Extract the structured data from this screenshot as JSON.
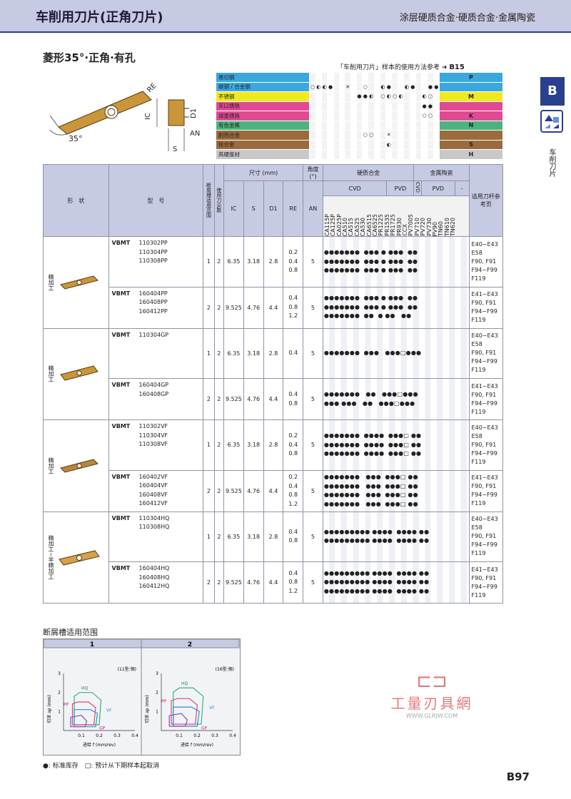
{
  "header": {
    "title": "车削用刀片(正角刀片)",
    "subtitle": "涂层硬质合金·硬质合金·金属陶瓷"
  },
  "section_title": "菱形35°·正角·有孔",
  "reference": {
    "text": "「车削用刀片」样本的使用方法参考",
    "page": "B15"
  },
  "side": {
    "tab": "B",
    "label": "车削刀片"
  },
  "diagram": {
    "label_re": "RE",
    "label_ic": "IC",
    "label_d1": "D1",
    "label_an": "AN",
    "label_s": "S",
    "label_angle": "35°"
  },
  "materials": [
    {
      "name": "易切钢",
      "color": "#3aa8dd",
      "code": "P",
      "marks": ""
    },
    {
      "name": "碳钢 / 合金钢",
      "color": "#3aa8dd",
      "code": "",
      "marks": "○◐◐●  ✕  ○  ◐●  ◐●  ●●"
    },
    {
      "name": "不锈钢",
      "color": "#f2e81c",
      "code": "M",
      "marks": "        ●●◐ ○◐○◐   ◐○"
    },
    {
      "name": "灰口铸铁",
      "color": "#e04a93",
      "code": "",
      "marks": "                   ●●"
    },
    {
      "name": "球墨铸铁",
      "color": "#e04a93",
      "code": "K",
      "marks": "                   ○○"
    },
    {
      "name": "有色金属",
      "color": "#4db37e",
      "code": "N",
      "marks": ""
    },
    {
      "name": "耐热合金",
      "color": "#9a6b3c",
      "code": "",
      "marks": "         ○○  ✕"
    },
    {
      "name": "钛合金",
      "color": "#9a6b3c",
      "code": "S",
      "marks": "             ◐"
    },
    {
      "name": "高硬度材",
      "color": "#c8c8c8",
      "code": "H",
      "marks": ""
    }
  ],
  "table_head": {
    "shape": "形　状",
    "model": "型　号",
    "breaker": "断屑槽适用范围",
    "edges": "使用刀尖数",
    "dims": "尺寸 (mm)",
    "angle": "角度 (°)",
    "carbide": "硬质合金",
    "cermet": "金属陶瓷",
    "cvd": "CVD",
    "pvd": "PVD",
    "cvd2": "CVD",
    "pvd2": "PVD",
    "dash": "-",
    "holder": "适用刀杆参考页",
    "ic": "IC",
    "s": "S",
    "d1": "D1",
    "re": "RE",
    "an": "AN"
  },
  "grades": [
    "CA115P",
    "CA125P",
    "CA025P",
    "CA510",
    "CA515",
    "CA525",
    "CA530",
    "CA6515",
    "CA6525",
    "PR1225",
    "PR1535",
    "PR1725",
    "PR930",
    "CCX",
    "PV7005",
    "PV710",
    "PV720",
    "PV730",
    "PV90",
    "TN60",
    "TN610",
    "TN620"
  ],
  "groups": [
    {
      "category": "精加工",
      "rows": [
        {
          "model": "VBMT",
          "codes": [
            "110302PP",
            "110304PP",
            "110308PP"
          ],
          "breaker": "1",
          "edges": "2",
          "ic": "6.35",
          "s": "3.18",
          "d1": "2.8",
          "re": [
            "0.2",
            "0.4",
            "0.8"
          ],
          "an": "5",
          "dots": [
            "●●●●●●●  ●●● ● ●●●  ●●",
            "●●●●●●●  ●●● ● ●●●  ●●",
            "●●●●●●●  ●●● ● ●●●  ●●"
          ],
          "holder": [
            "E40~E43",
            "E58",
            "F90, F91",
            "F94~F99",
            "F119"
          ]
        },
        {
          "model": "VBMT",
          "codes": [
            "160404PP",
            "160408PP",
            "160412PP"
          ],
          "breaker": "2",
          "edges": "2",
          "ic": "9.525",
          "s": "4.76",
          "d1": "4.4",
          "re": [
            "0.4",
            "0.8",
            "1.2"
          ],
          "an": "5",
          "dots": [
            "●●●●●●●  ●●● ● ●●●  ●●",
            "●●●●●●●  ●●● ● ●●●  ●●",
            "●●●●●●●  ●●  ● ●●   ●●"
          ],
          "holder": [
            "E41~E43",
            "F90, F91",
            "F94~F99",
            "F119"
          ]
        }
      ]
    },
    {
      "category": "精加工",
      "rows": [
        {
          "model": "VBMT",
          "codes": [
            "110304GP"
          ],
          "breaker": "1",
          "edges": "2",
          "ic": "6.35",
          "s": "3.18",
          "d1": "2.8",
          "re": [
            "0.4"
          ],
          "an": "5",
          "dots": [
            "●●●●●●●  ●●●   ●●●□●●●"
          ],
          "holder": [
            "E40~E43",
            "E58",
            "F90, F91",
            "F94~F99",
            "F119"
          ]
        },
        {
          "model": "VBMT",
          "codes": [
            "160404GP",
            "160408GP"
          ],
          "breaker": "2",
          "edges": "2",
          "ic": "9.525",
          "s": "4.76",
          "d1": "4.4",
          "re": [
            "0.4",
            "0.8"
          ],
          "an": "5",
          "dots": [
            "●●●●●●●   ●●   ●●●□●●●",
            "●●● ●●●   ●●   ●●●□●●●"
          ],
          "holder": [
            "E41~E43",
            "F90, F91",
            "F94~F99",
            "F119"
          ]
        }
      ]
    },
    {
      "category": "精加工",
      "rows": [
        {
          "model": "VBMT",
          "codes": [
            "110302VF",
            "110304VF",
            "110308VF"
          ],
          "breaker": "1",
          "edges": "2",
          "ic": "6.35",
          "s": "3.18",
          "d1": "2.8",
          "re": [
            "0.2",
            "0.4",
            "0.8"
          ],
          "an": "5",
          "dots": [
            "●●●●●●●  ●●●●  ●●●□ ●●",
            "●●●●●●●  ●●●●  ●●●□ ●●",
            "●●●●●●●  ●●●●  ●●●□ ●●"
          ],
          "holder": [
            "E40~E43",
            "E58",
            "F90, F91",
            "F94~F99",
            "F119"
          ]
        },
        {
          "model": "VBMT",
          "codes": [
            "160402VF",
            "160404VF",
            "160408VF",
            "160412VF"
          ],
          "breaker": "2",
          "edges": "2",
          "ic": "9.525",
          "s": "4.76",
          "d1": "4.4",
          "re": [
            "0.2",
            "0.4",
            "0.8",
            "1.2"
          ],
          "an": "5",
          "dots": [
            "●●●●●●●   ●●●  ●●●□ ●●",
            "●●●●●●●   ●●●  ●●●□ ●●",
            "●●●●●●●   ●●●  ●●●□ ●●",
            "●●●●●●●   ●●●  ●●●□ ●●"
          ],
          "holder": [
            "E41~E43",
            "F90, F91",
            "F94~F99",
            "F119"
          ]
        }
      ]
    },
    {
      "category": "精加工~半精加工",
      "rows": [
        {
          "model": "VBMT",
          "codes": [
            "110304HQ",
            "110308HQ"
          ],
          "breaker": "1",
          "edges": "2",
          "ic": "6.35",
          "s": "3.18",
          "d1": "2.8",
          "re": [
            "0.4",
            "0.8"
          ],
          "an": "5",
          "dots": [
            "●●●●●●●●● ●●●●  ●●●● ●●",
            "●●●●●●●●● ●●●●  ●●●● ●●"
          ],
          "holder": [
            "E40~E43",
            "E58",
            "F90, F91",
            "F94~F99",
            "F119"
          ]
        },
        {
          "model": "VBMT",
          "codes": [
            "160404HQ",
            "160408HQ",
            "160412HQ"
          ],
          "breaker": "2",
          "edges": "2",
          "ic": "9.525",
          "s": "4.76",
          "d1": "4.4",
          "re": [
            "0.4",
            "0.8",
            "1.2"
          ],
          "an": "5",
          "dots": [
            "●●●●●●●●● ●●●●  ●●●● ●●",
            "●●●●●●●●● ●●●●  ●●●● ●●",
            "●●●●●●●●● ●●●●  ●●●● ●●"
          ],
          "holder": [
            "E41~E43",
            "F90, F91",
            "F94~F99",
            "F119"
          ]
        }
      ]
    }
  ],
  "chipbreaker": {
    "title": "断屑槽适用范围",
    "panels": [
      {
        "num": "1",
        "note": "(11型:钢)",
        "curves": [
          "HQ",
          "PP",
          "VF",
          "GP"
        ]
      },
      {
        "num": "2",
        "note": "(16型:钢)",
        "curves": [
          "HQ",
          "PP",
          "VF",
          "GP"
        ]
      }
    ],
    "ylabel": "切深 ap (mm)",
    "xlabel": "进给 f (mm/rev)",
    "yticks": [
      "3",
      "2",
      "1"
    ],
    "xticks": [
      "0.1",
      "0.2",
      "0.3",
      "0.4"
    ]
  },
  "legend": "●: 标准库存　□: 预计从下期样本起取消",
  "watermark": {
    "name": "工量刃具網",
    "url": "WWW.GLRJW.COM"
  },
  "page_number": "B97"
}
